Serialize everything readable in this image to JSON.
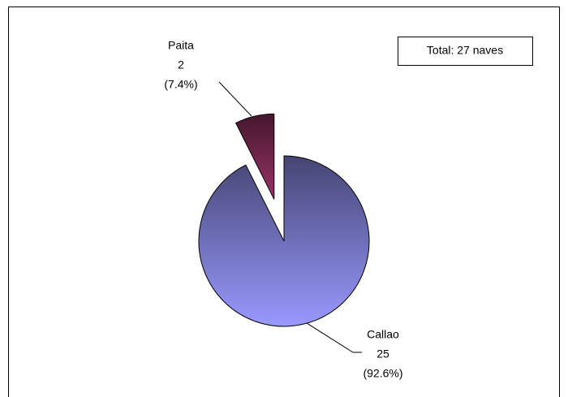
{
  "chart_data": {
    "type": "pie",
    "categories": [
      "Callao",
      "Paita"
    ],
    "values": [
      25,
      2
    ],
    "percents": [
      92.6,
      7.4
    ],
    "percent_labels": [
      "(92.6%)",
      "(7.4%)"
    ],
    "colors": [
      "#9999ff",
      "#993366"
    ],
    "annotation": "Total: 27 naves"
  }
}
